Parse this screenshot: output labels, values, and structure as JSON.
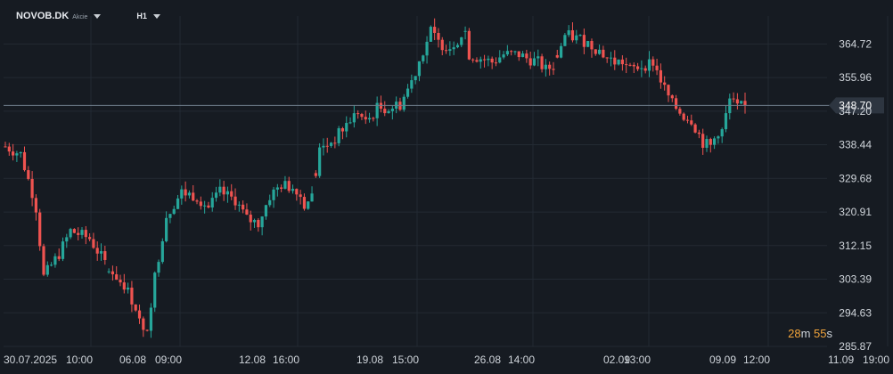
{
  "header": {
    "symbol": "NOVOB.DK",
    "asset_type": "Akcie",
    "timeframe": "H1"
  },
  "countdown": {
    "minutes": "28",
    "minutes_unit": "m",
    "seconds": "55",
    "seconds_unit": "s"
  },
  "colors": {
    "background": "#161b22",
    "grid": "#232a33",
    "up": "#26a69a",
    "down": "#ef5350",
    "price_line": "#6f7e8c",
    "price_tag": "#2d3540",
    "axis_text": "#cfd4da"
  },
  "chart_data": {
    "type": "candlestick",
    "symbol": "NOVOB.DK",
    "interval": "H1",
    "current_price": "348.70",
    "ylim": [
      285.87,
      372.0
    ],
    "y_ticks": [
      "364.72",
      "355.96",
      "347.20",
      "338.44",
      "329.68",
      "320.91",
      "312.15",
      "303.39",
      "294.63",
      "285.87"
    ],
    "x_ticks": [
      "30.07.2025",
      "10:00",
      "06.08",
      "09:00",
      "12.08",
      "16:00",
      "19.08",
      "15:00",
      "26.08",
      "14:00",
      "02.09",
      "13:00",
      "09.09",
      "12:00",
      "11.09",
      "19:00"
    ],
    "grid": true,
    "close_path": [
      [
        0,
        338
      ],
      [
        4,
        336
      ],
      [
        7,
        326
      ],
      [
        8,
        322
      ],
      [
        10,
        304
      ],
      [
        14,
        310
      ],
      [
        17,
        316
      ],
      [
        22,
        314
      ],
      [
        27,
        306
      ],
      [
        31,
        302
      ],
      [
        34,
        296
      ],
      [
        36,
        289
      ],
      [
        37,
        291
      ],
      [
        39,
        304
      ],
      [
        42,
        320
      ],
      [
        46,
        326
      ],
      [
        50,
        325
      ],
      [
        53,
        322
      ],
      [
        56,
        326
      ],
      [
        60,
        324
      ],
      [
        63,
        319
      ],
      [
        66,
        318
      ],
      [
        69,
        325
      ],
      [
        72,
        328
      ],
      [
        76,
        327
      ],
      [
        78,
        323
      ],
      [
        80,
        325
      ],
      [
        82,
        337
      ],
      [
        86,
        340
      ],
      [
        90,
        345
      ],
      [
        92,
        347
      ],
      [
        94,
        344
      ],
      [
        97,
        348
      ],
      [
        100,
        348
      ],
      [
        103,
        349
      ],
      [
        106,
        355
      ],
      [
        109,
        363
      ],
      [
        111,
        368
      ],
      [
        113,
        365
      ],
      [
        116,
        364
      ],
      [
        118,
        366
      ],
      [
        120,
        368
      ],
      [
        121,
        362
      ],
      [
        124,
        361
      ],
      [
        127,
        360
      ],
      [
        130,
        362
      ],
      [
        134,
        362
      ],
      [
        136,
        361
      ],
      [
        139,
        360
      ],
      [
        141,
        358
      ],
      [
        143,
        359
      ],
      [
        146,
        367
      ],
      [
        150,
        366
      ],
      [
        152,
        365
      ],
      [
        155,
        363
      ],
      [
        157,
        361
      ],
      [
        159,
        360
      ],
      [
        161,
        360
      ],
      [
        163,
        358
      ],
      [
        166,
        359
      ],
      [
        169,
        360
      ],
      [
        172,
        353
      ],
      [
        174,
        349
      ],
      [
        177,
        346
      ],
      [
        179,
        345
      ],
      [
        182,
        339
      ],
      [
        184,
        338
      ],
      [
        186,
        342
      ],
      [
        187,
        342
      ],
      [
        189,
        350
      ],
      [
        191,
        348
      ],
      [
        193,
        348.7
      ]
    ]
  }
}
